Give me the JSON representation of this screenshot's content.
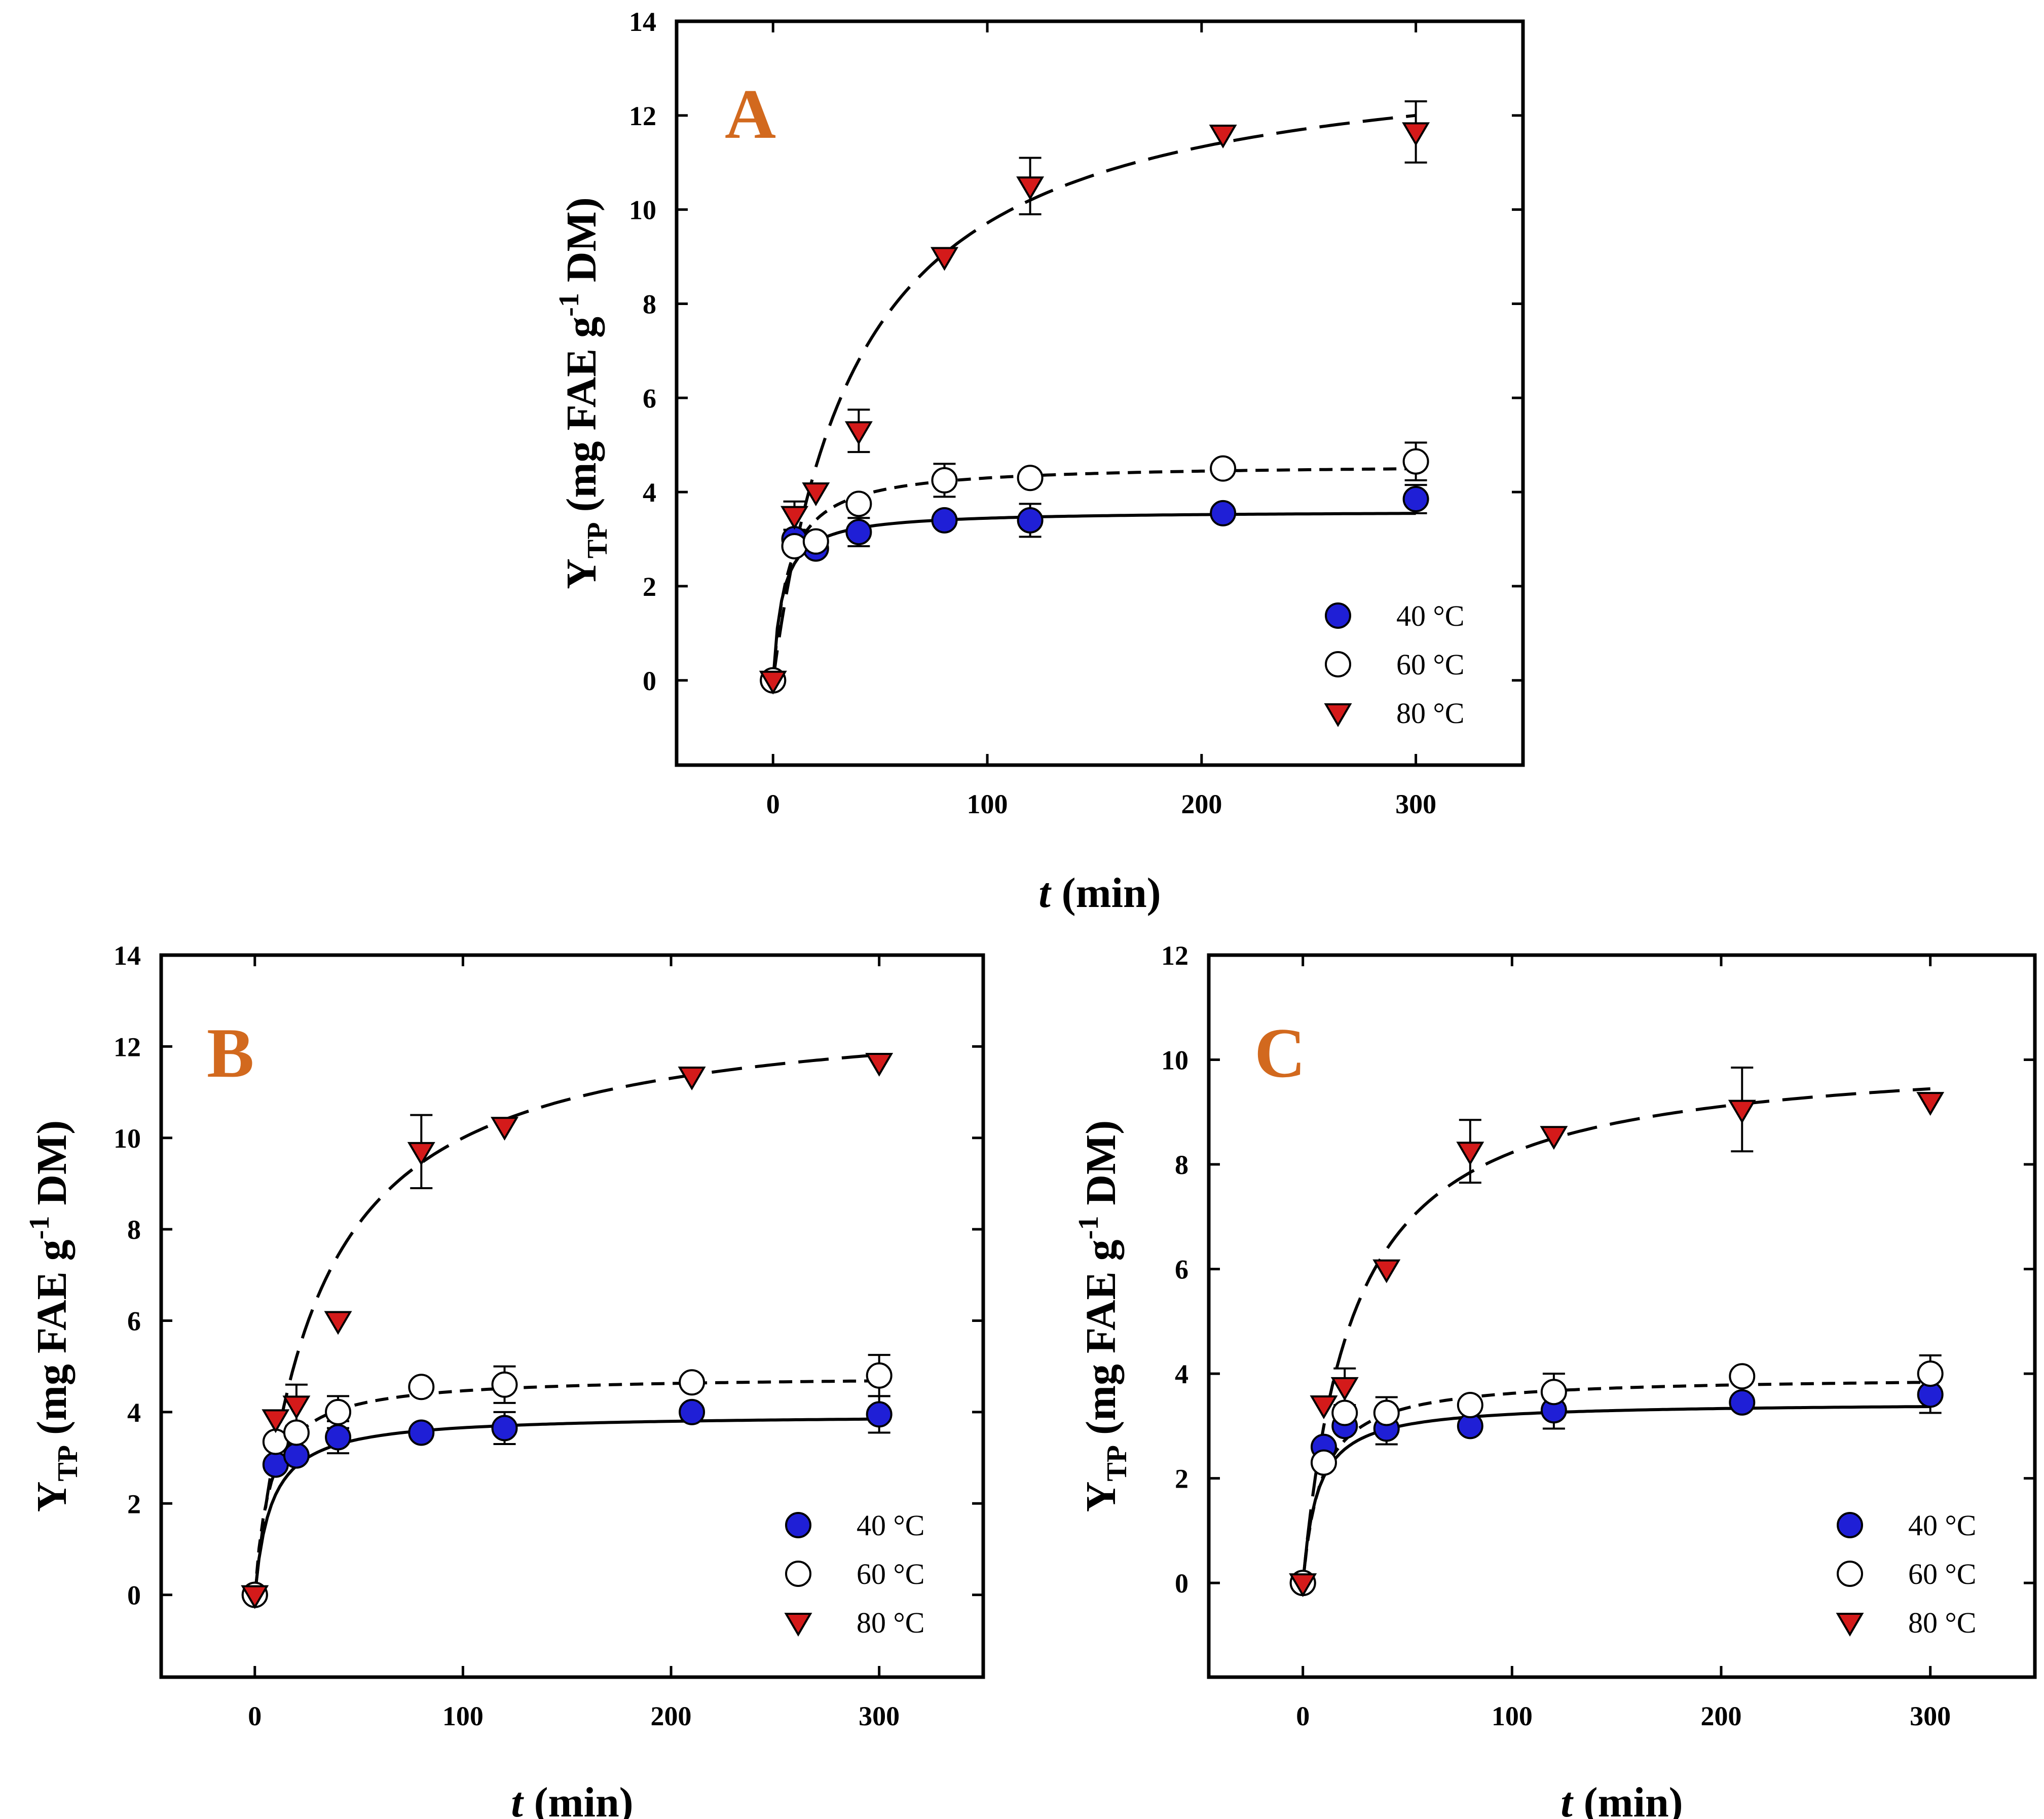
{
  "chart_data": [
    {
      "type": "scatter",
      "panel_label": "A",
      "xlabel_main": "t",
      "xlabel_unit": "(min)",
      "ylabel_main": "Y",
      "ylabel_sub": "TP",
      "ylabel_unit_a": "(mg FAE g",
      "ylabel_sup": "-1",
      "ylabel_unit_b": " DM)",
      "xlim": [
        -45,
        350
      ],
      "ylim": [
        -1.8,
        14
      ],
      "xticks": [
        0,
        100,
        200,
        300
      ],
      "yticks": [
        0,
        2,
        4,
        6,
        8,
        10,
        12,
        14
      ],
      "legend_position": "bottom-right",
      "legend_labels": [
        "40 °C",
        "60 °C",
        "80 °C"
      ],
      "series": [
        {
          "name": "40 °C",
          "marker": "circle-filled",
          "color": "#1f1fd6",
          "x": [
            0,
            10,
            20,
            40,
            80,
            120,
            210,
            300
          ],
          "y": [
            0,
            3.0,
            2.8,
            3.15,
            3.4,
            3.4,
            3.55,
            3.85
          ],
          "err": [
            0,
            0,
            0,
            0.3,
            0,
            0.35,
            0,
            0.3
          ],
          "fit": {
            "ymax": 3.6,
            "k": 4.5,
            "style": "solid"
          }
        },
        {
          "name": "60 °C",
          "marker": "circle-open",
          "color": "#ffffff",
          "x": [
            0,
            10,
            20,
            40,
            80,
            120,
            210,
            300
          ],
          "y": [
            0,
            2.85,
            2.95,
            3.75,
            4.25,
            4.3,
            4.5,
            4.65
          ],
          "err": [
            0,
            0,
            0,
            0,
            0.35,
            0,
            0,
            0.4
          ],
          "fit": {
            "ymax": 4.6,
            "k": 7.0,
            "style": "short-dash"
          }
        },
        {
          "name": "80 °C",
          "marker": "triangle-down",
          "color": "#d41a1a",
          "x": [
            0,
            10,
            20,
            40,
            80,
            120,
            210,
            300
          ],
          "y": [
            0,
            3.5,
            4.0,
            5.3,
            9.0,
            10.5,
            11.6,
            11.65
          ],
          "err": [
            0,
            0.3,
            0,
            0.45,
            0,
            0.6,
            0,
            0.65
          ],
          "fit": {
            "ymax": 13.6,
            "k": 40,
            "style": "long-dash"
          }
        }
      ]
    },
    {
      "type": "scatter",
      "panel_label": "B",
      "xlabel_main": "t",
      "xlabel_unit": "(min)",
      "ylabel_main": "Y",
      "ylabel_sub": "TP",
      "ylabel_unit_a": "(mg FAE g",
      "ylabel_sup": "-1",
      "ylabel_unit_b": " DM)",
      "xlim": [
        -45,
        350
      ],
      "ylim": [
        -1.8,
        14
      ],
      "xticks": [
        0,
        100,
        200,
        300
      ],
      "yticks": [
        0,
        2,
        4,
        6,
        8,
        10,
        12,
        14
      ],
      "legend_position": "bottom-right",
      "legend_labels": [
        "40 °C",
        "60 °C",
        "80 °C"
      ],
      "series": [
        {
          "name": "40 °C",
          "marker": "circle-filled",
          "color": "#1f1fd6",
          "x": [
            0,
            10,
            20,
            40,
            80,
            120,
            210,
            300
          ],
          "y": [
            0,
            2.85,
            3.05,
            3.45,
            3.55,
            3.65,
            4.0,
            3.95
          ],
          "err": [
            0,
            0,
            0,
            0.35,
            0,
            0.35,
            0,
            0.4
          ],
          "fit": {
            "ymax": 3.95,
            "k": 8.0,
            "style": "solid"
          }
        },
        {
          "name": "60 °C",
          "marker": "circle-open",
          "color": "#ffffff",
          "x": [
            0,
            10,
            20,
            40,
            80,
            120,
            210,
            300
          ],
          "y": [
            0,
            3.35,
            3.55,
            4.0,
            4.55,
            4.6,
            4.65,
            4.8
          ],
          "err": [
            0,
            0,
            0,
            0.35,
            0,
            0.4,
            0,
            0.45
          ],
          "fit": {
            "ymax": 4.8,
            "k": 7.5,
            "style": "short-dash"
          }
        },
        {
          "name": "80 °C",
          "marker": "triangle-down",
          "color": "#d41a1a",
          "x": [
            0,
            10,
            20,
            40,
            80,
            120,
            210,
            300
          ],
          "y": [
            0,
            3.85,
            4.15,
            6.0,
            9.7,
            10.25,
            11.35,
            11.65
          ],
          "err": [
            0,
            0,
            0.45,
            0,
            0.8,
            0,
            0,
            0
          ],
          "fit": {
            "ymax": 13.0,
            "k": 30,
            "style": "long-dash"
          }
        }
      ]
    },
    {
      "type": "scatter",
      "panel_label": "C",
      "xlabel_main": "t",
      "xlabel_unit": "(min)",
      "ylabel_main": "Y",
      "ylabel_sub": "TP",
      "ylabel_unit_a": "(mg FAE g",
      "ylabel_sup": "-1",
      "ylabel_unit_b": " DM)",
      "xlim": [
        -45,
        350
      ],
      "ylim": [
        -1.8,
        12
      ],
      "xticks": [
        0,
        100,
        200,
        300
      ],
      "yticks": [
        0,
        2,
        4,
        6,
        8,
        10,
        12
      ],
      "legend_position": "bottom-right",
      "legend_labels": [
        "40 °C",
        "60 °C",
        "80 °C"
      ],
      "series": [
        {
          "name": "40 °C",
          "marker": "circle-filled",
          "color": "#1f1fd6",
          "x": [
            0,
            10,
            20,
            40,
            80,
            120,
            210,
            300
          ],
          "y": [
            0,
            2.6,
            3.0,
            2.95,
            3.0,
            3.3,
            3.45,
            3.6
          ],
          "err": [
            0,
            0,
            0,
            0.3,
            0,
            0.35,
            0,
            0.35
          ],
          "fit": {
            "ymax": 3.45,
            "k": 7.0,
            "style": "solid"
          }
        },
        {
          "name": "60 °C",
          "marker": "circle-open",
          "color": "#ffffff",
          "x": [
            0,
            10,
            20,
            40,
            80,
            120,
            210,
            300
          ],
          "y": [
            0,
            2.3,
            3.25,
            3.25,
            3.4,
            3.65,
            3.95,
            4.0
          ],
          "err": [
            0,
            0,
            0,
            0.3,
            0,
            0.35,
            0,
            0.35
          ],
          "fit": {
            "ymax": 3.95,
            "k": 9.0,
            "style": "short-dash"
          }
        },
        {
          "name": "80 °C",
          "marker": "triangle-down",
          "color": "#d41a1a",
          "x": [
            0,
            10,
            20,
            40,
            80,
            120,
            210,
            300
          ],
          "y": [
            0,
            3.4,
            3.75,
            6.0,
            8.25,
            8.55,
            9.05,
            9.2
          ],
          "err": [
            0,
            0,
            0.35,
            0,
            0.6,
            0,
            0.8,
            0
          ],
          "fit": {
            "ymax": 10.2,
            "k": 24,
            "style": "long-dash"
          }
        }
      ]
    }
  ]
}
